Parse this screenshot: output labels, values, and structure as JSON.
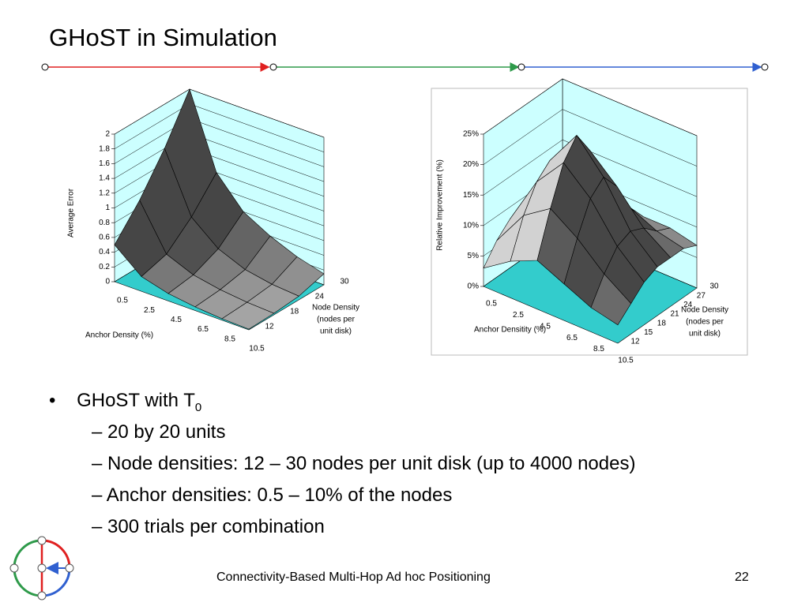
{
  "title": "GHoST in Simulation",
  "chart_data": [
    {
      "type": "surface",
      "y_label": "Average Error",
      "x_label": "Anchor Density (%)",
      "z_label_lines": [
        "Node Density",
        "(nodes per",
        "unit disk)"
      ],
      "x": [
        0.5,
        2.5,
        4.5,
        6.5,
        8.5,
        10.5
      ],
      "z": [
        12,
        18,
        24,
        30
      ],
      "values": [
        [
          0.5,
          0.2,
          0.1,
          0.05,
          0.02,
          0.01
        ],
        [
          0.9,
          0.3,
          0.15,
          0.08,
          0.04,
          0.02
        ],
        [
          1.4,
          0.6,
          0.3,
          0.15,
          0.08,
          0.05
        ],
        [
          2.0,
          1.0,
          0.6,
          0.4,
          0.25,
          0.15
        ]
      ],
      "ylim": [
        0,
        2
      ],
      "yticks": [
        0,
        0.2,
        0.4,
        0.6,
        0.8,
        1,
        1.2,
        1.4,
        1.6,
        1.8,
        2
      ],
      "color": "#a8a8a8",
      "wall_color": "#ccffff",
      "floor_color": "#33cccc"
    },
    {
      "type": "surface",
      "y_label": "Relative Improvement (%)",
      "x_label": "Anchor Densitity (%)",
      "z_label_lines": [
        "Node Density",
        "(nodes per",
        "unit disk)"
      ],
      "x": [
        0.5,
        2.5,
        4.5,
        6.5,
        8.5,
        10.5
      ],
      "z": [
        12,
        15,
        18,
        21,
        24,
        27,
        30
      ],
      "values": [
        [
          3,
          6,
          8,
          6,
          4,
          3
        ],
        [
          6,
          12,
          15,
          12,
          8,
          5
        ],
        [
          8,
          16,
          21,
          17,
          11,
          7
        ],
        [
          9,
          18,
          24,
          19,
          12,
          8
        ],
        [
          8,
          15,
          20,
          16,
          11,
          8
        ],
        [
          6,
          10,
          13,
          11,
          9,
          8
        ],
        [
          4,
          7,
          9,
          8,
          8,
          7
        ]
      ],
      "ylim": [
        0,
        25
      ],
      "yticks": [
        {
          "value": 0,
          "label": "0%"
        },
        {
          "value": 5,
          "label": "5%"
        },
        {
          "value": 10,
          "label": "10%"
        },
        {
          "value": 15,
          "label": "15%"
        },
        {
          "value": 20,
          "label": "20%"
        },
        {
          "value": 25,
          "label": "25%"
        }
      ],
      "color": "#a8a8a8",
      "wall_color": "#ccffff",
      "floor_color": "#33cccc"
    }
  ],
  "bullets": {
    "main": "GHoST with T",
    "main_sub": "0",
    "items": [
      "20 by 20 units",
      "Node densities: 12 – 30 nodes per unit disk (up to 4000 nodes)",
      "Anchor densities: 0.5 – 10% of the nodes",
      "300 trials per combination"
    ]
  },
  "footer": {
    "text": "Connectivity-Based Multi-Hop Ad hoc Positioning",
    "page": "22"
  }
}
